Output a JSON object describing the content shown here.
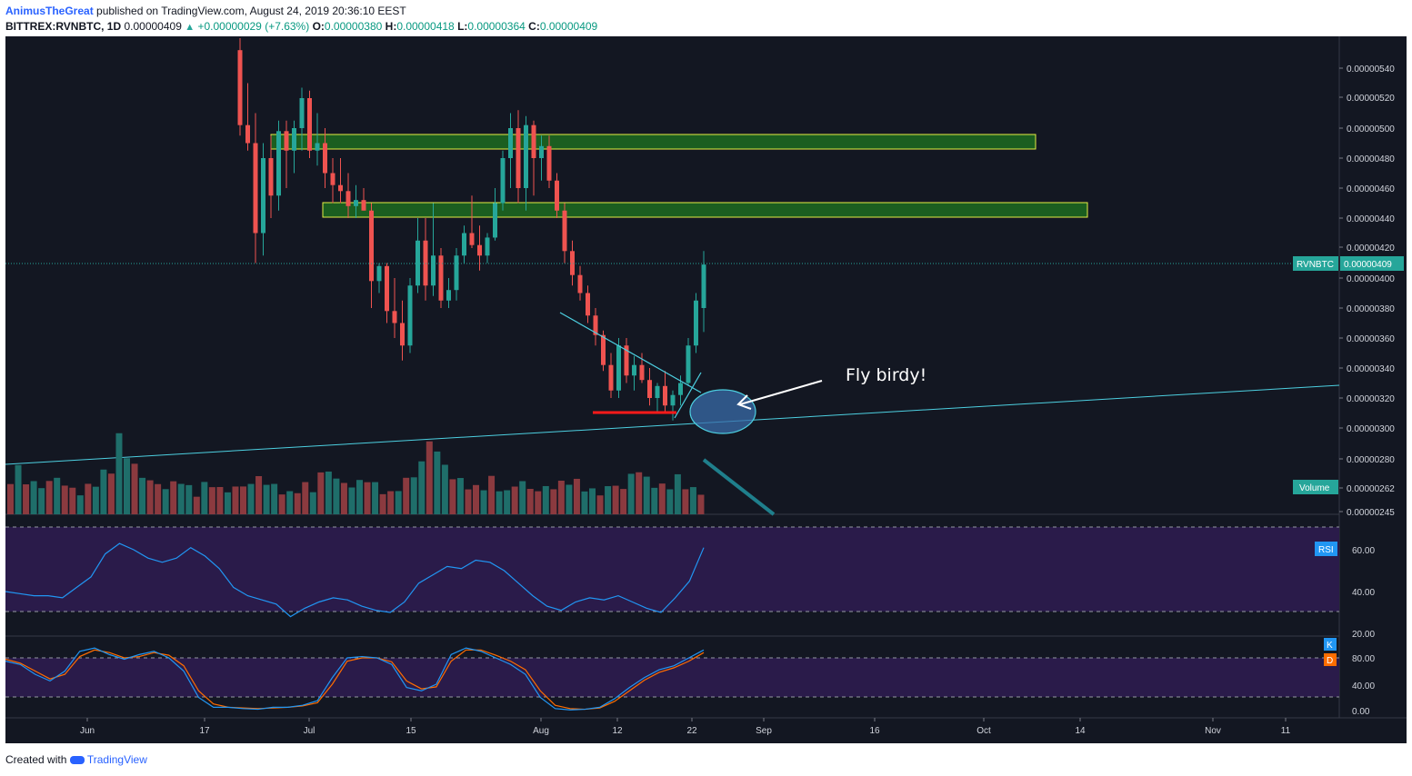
{
  "header": {
    "author": "AnimusTheGreat",
    "published": "published on TradingView.com, August 24, 2019 20:36:10 EEST",
    "symbol": "BITTREX:RVNBTC, 1D",
    "last": "0.00000409",
    "change": "+0.00000029 (+7.63%)",
    "o_label": "O:",
    "o": "0.00000380",
    "h_label": "H:",
    "h": "0.00000418",
    "l_label": "L:",
    "l": "0.00000364",
    "c_label": "C:",
    "c": "0.00000409"
  },
  "footer": {
    "created": "Created with",
    "brand": "TradingView"
  },
  "colors": {
    "background": "#131722",
    "up": "#26a69a",
    "down": "#ef5350",
    "zone_fill": "#1b5e20",
    "zone_border": "#e6ee44",
    "trendline": "#4dd0e1",
    "support_line": "#ff1a1a",
    "rsi_line": "#2196f3",
    "k_line": "#2196f3",
    "d_line": "#ff6d00",
    "osc_band": "#2a1b4a",
    "annotation": "#ffffff"
  },
  "chart_data": [
    {
      "type": "candlestick",
      "symbol_label": "RVNBTC",
      "last_price_label": "0.00000409",
      "volume_label": "Volume",
      "y_ticks": [
        "0.00000540",
        "0.00000520",
        "0.00000500",
        "0.00000480",
        "0.00000460",
        "0.00000440",
        "0.00000420",
        "0.00000400",
        "0.00000380",
        "0.00000360",
        "0.00000340",
        "0.00000320",
        "0.00000300",
        "0.00000280",
        "0.00000262",
        "0.00000245"
      ],
      "x_ticks": [
        "Jun",
        "17",
        "Jul",
        "15",
        "Aug",
        "12",
        "22",
        "Sep",
        "16",
        "Oct",
        "14",
        "Nov",
        "11"
      ],
      "ylim": [
        2.45e-06,
        5.52e-06
      ],
      "candles": [
        [
          5.52,
          5.6,
          4.95,
          5.02
        ],
        [
          5.02,
          5.3,
          4.85,
          4.9
        ],
        [
          4.9,
          5.1,
          4.1,
          4.3
        ],
        [
          4.3,
          4.9,
          4.15,
          4.8
        ],
        [
          4.8,
          4.95,
          4.4,
          4.55
        ],
        [
          4.55,
          5.05,
          4.45,
          4.98
        ],
        [
          4.98,
          5.05,
          4.6,
          4.85
        ],
        [
          4.85,
          5.05,
          4.7,
          5.0
        ],
        [
          5.0,
          5.27,
          4.85,
          5.2
        ],
        [
          5.2,
          5.25,
          4.8,
          4.85
        ],
        [
          4.85,
          5.1,
          4.75,
          4.9
        ],
        [
          4.9,
          5.0,
          4.6,
          4.7
        ],
        [
          4.7,
          4.8,
          4.5,
          4.62
        ],
        [
          4.62,
          4.8,
          4.5,
          4.58
        ],
        [
          4.58,
          4.7,
          4.4,
          4.48
        ],
        [
          4.48,
          4.62,
          4.4,
          4.52
        ],
        [
          4.52,
          4.6,
          4.45,
          4.45
        ],
        [
          4.45,
          4.5,
          3.8,
          3.98
        ],
        [
          3.98,
          4.1,
          3.9,
          4.08
        ],
        [
          4.08,
          4.1,
          3.7,
          3.78
        ],
        [
          3.78,
          4.0,
          3.6,
          3.7
        ],
        [
          3.7,
          3.85,
          3.45,
          3.55
        ],
        [
          3.55,
          4.0,
          3.5,
          3.95
        ],
        [
          3.95,
          4.4,
          3.9,
          4.25
        ],
        [
          4.25,
          4.4,
          3.85,
          3.95
        ],
        [
          3.95,
          4.5,
          3.88,
          4.15
        ],
        [
          4.15,
          4.2,
          3.8,
          3.85
        ],
        [
          3.85,
          4.0,
          3.8,
          3.92
        ],
        [
          3.92,
          4.2,
          3.85,
          4.15
        ],
        [
          4.15,
          4.35,
          4.1,
          4.3
        ],
        [
          4.3,
          4.55,
          4.2,
          4.22
        ],
        [
          4.22,
          4.35,
          4.05,
          4.15
        ],
        [
          4.15,
          4.3,
          4.1,
          4.27
        ],
        [
          4.27,
          4.6,
          4.25,
          4.5
        ],
        [
          4.5,
          4.85,
          4.45,
          4.8
        ],
        [
          4.8,
          5.1,
          4.6,
          5.0
        ],
        [
          5.0,
          5.12,
          4.5,
          4.6
        ],
        [
          4.6,
          5.08,
          4.45,
          5.02
        ],
        [
          5.02,
          5.05,
          4.55,
          4.8
        ],
        [
          4.8,
          4.95,
          4.65,
          4.88
        ]
      ],
      "volume": [
        2.8,
        3.2,
        2.5,
        2.2,
        2.0,
        2.3,
        2.6,
        2.1,
        1.8,
        1.5,
        2.0,
        2.4,
        2.9,
        3.6,
        5.3,
        4.5,
        3.4,
        2.7,
        2.4,
        2.1,
        1.9,
        2.2,
        2.5,
        1.9,
        1.6,
        2.1,
        2.3,
        1.8,
        1.7,
        1.9,
        2.0,
        2.2,
        2.6,
        2.3,
        2.0,
        1.7,
        1.5,
        1.9,
        2.1,
        1.8
      ]
    },
    {
      "type": "line",
      "name": "RSI",
      "label": "RSI",
      "y_ticks": [
        "60.00",
        "40.00",
        "20.00"
      ],
      "ylim": [
        20,
        70
      ],
      "bands": [
        70,
        30
      ],
      "values": [
        40,
        39,
        38,
        38,
        37,
        42,
        47,
        58,
        63,
        60,
        56,
        54,
        56,
        61,
        57,
        51,
        42,
        38,
        36,
        34,
        28,
        32,
        35,
        37,
        36,
        33,
        31,
        30,
        35,
        44,
        48,
        52,
        51,
        55,
        54,
        50,
        44,
        38,
        33,
        31,
        35,
        37,
        36,
        38,
        35,
        32,
        30,
        37,
        45,
        61
      ]
    },
    {
      "type": "line",
      "name": "Stoch",
      "labels": {
        "k": "K",
        "d": "D"
      },
      "y_ticks": [
        "80.00",
        "40.00",
        "0.00"
      ],
      "ylim": [
        0,
        100
      ],
      "bands": [
        80,
        20
      ],
      "k": [
        75,
        70,
        55,
        45,
        60,
        90,
        95,
        85,
        78,
        85,
        90,
        80,
        60,
        20,
        5,
        5,
        3,
        2,
        5,
        5,
        8,
        15,
        50,
        80,
        82,
        80,
        70,
        35,
        30,
        40,
        85,
        95,
        90,
        80,
        70,
        55,
        20,
        3,
        1,
        2,
        5,
        18,
        35,
        50,
        62,
        68,
        80,
        92
      ],
      "d": [
        78,
        72,
        60,
        48,
        55,
        82,
        92,
        88,
        80,
        82,
        88,
        84,
        68,
        30,
        10,
        5,
        4,
        3,
        4,
        5,
        7,
        12,
        40,
        75,
        80,
        80,
        74,
        45,
        33,
        36,
        75,
        92,
        92,
        84,
        75,
        62,
        30,
        8,
        3,
        2,
        4,
        14,
        30,
        46,
        58,
        65,
        75,
        88
      ]
    }
  ],
  "annotations": {
    "text": "Fly birdy!"
  }
}
